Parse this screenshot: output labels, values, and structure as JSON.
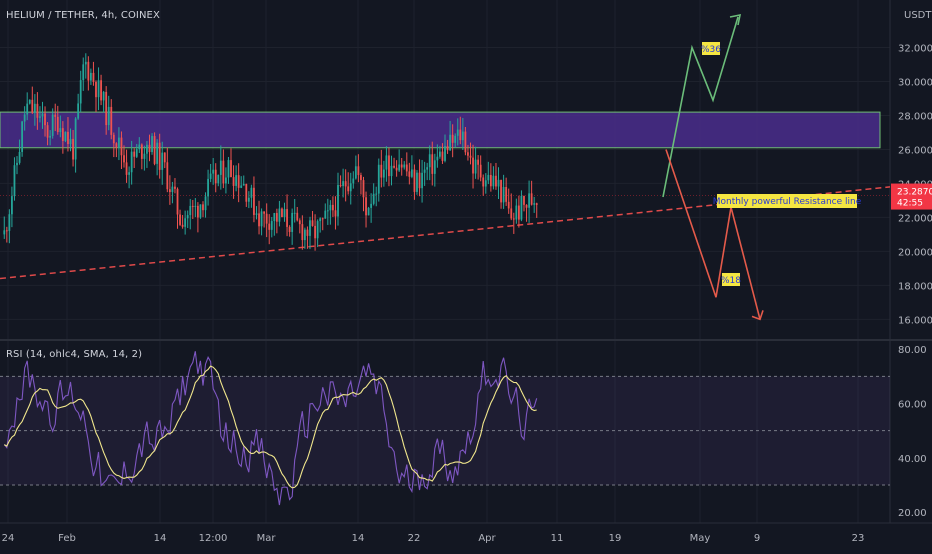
{
  "symbol_line": "HELIUM / TETHER, 4h, COINEX",
  "unit": "USDT",
  "rsi_label": "RSI (14, ohlc4, SMA, 14, 2)",
  "colors": {
    "bg": "#131722",
    "up": "#26a69a",
    "down": "#ef5350",
    "zone_fill": "#4a2d8c",
    "zone_border": "#6fbf73",
    "trendline": "#e04a4a",
    "green_path": "#6bbd7a",
    "red_path": "#e45a4a",
    "rsi_line": "#7e57c2",
    "rsi_ma": "#f0e68c",
    "price_tag": "#f23645",
    "label_bg": "#f5e642",
    "label_text": "#2a3bd6"
  },
  "chart_data": {
    "type": "candlestick",
    "title": "HELIUM / TETHER, 4h, COINEX",
    "price_axis": {
      "ticks": [
        "32.0000",
        "30.0000",
        "28.0000",
        "26.0000",
        "24.0000",
        "22.0000",
        "20.0000",
        "18.0000",
        "16.0000"
      ],
      "ylim": [
        14.9,
        34.8
      ]
    },
    "x_axis": {
      "ticks": [
        "24",
        "Feb",
        "14",
        "12:00",
        "Mar",
        "14",
        "22",
        "Apr",
        "11",
        "19",
        "May",
        "9",
        "23"
      ]
    },
    "price_path_anchors": [
      [
        0,
        21.0
      ],
      [
        0.02,
        24.5
      ],
      [
        0.04,
        28.5
      ],
      [
        0.06,
        28.2
      ],
      [
        0.08,
        27.0
      ],
      [
        0.1,
        27.8
      ],
      [
        0.13,
        26.0
      ],
      [
        0.15,
        31.2
      ],
      [
        0.17,
        30.0
      ],
      [
        0.2,
        27.5
      ],
      [
        0.23,
        25.0
      ],
      [
        0.27,
        26.5
      ],
      [
        0.3,
        25.0
      ],
      [
        0.33,
        22.0
      ],
      [
        0.36,
        22.5
      ],
      [
        0.39,
        24.0
      ],
      [
        0.42,
        25.0
      ],
      [
        0.45,
        24.0
      ],
      [
        0.48,
        22.0
      ],
      [
        0.52,
        22.0
      ],
      [
        0.55,
        21.5
      ],
      [
        0.58,
        21.0
      ],
      [
        0.61,
        22.0
      ],
      [
        0.64,
        24.0
      ],
      [
        0.66,
        25.0
      ],
      [
        0.68,
        22.5
      ],
      [
        0.71,
        25.0
      ],
      [
        0.74,
        25.5
      ],
      [
        0.77,
        24.0
      ],
      [
        0.8,
        25.0
      ],
      [
        0.83,
        26.0
      ],
      [
        0.86,
        27.0
      ],
      [
        0.88,
        25.0
      ],
      [
        0.9,
        24.5
      ],
      [
        0.93,
        23.8
      ],
      [
        0.95,
        22.0
      ],
      [
        1.0,
        23.3
      ]
    ],
    "supply_zone": {
      "from": 26.1,
      "to": 28.2
    },
    "resistance_line": {
      "start": 18.4,
      "end": 23.8
    },
    "current_price": {
      "value": "23.2870",
      "countdown": "42:55"
    },
    "green_scenario": {
      "label": "%36",
      "points": [
        23.2,
        32.0,
        28.9,
        33.8
      ]
    },
    "red_scenario": {
      "label": "%18",
      "points": [
        26.0,
        17.3,
        22.6,
        16.0
      ]
    },
    "resistance_label": "Monthly powerful Resistance line",
    "rsi": {
      "ticks": [
        "80.00",
        "60.00",
        "40.00",
        "20.00"
      ],
      "ylim": [
        16,
        83
      ],
      "upper_band": 70,
      "mid_band": 50,
      "lower_band": 30
    }
  }
}
